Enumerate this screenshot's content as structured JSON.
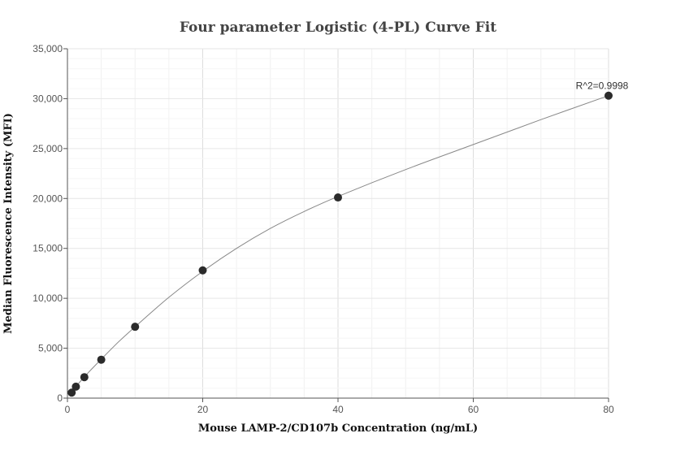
{
  "chart_data": {
    "type": "scatter",
    "title": "Four parameter Logistic (4-PL) Curve Fit",
    "xlabel": "Mouse LAMP-2/CD107b Concentration (ng/mL)",
    "ylabel": "Median Fluorescence Intensity (MFI)",
    "xlim": [
      0,
      80
    ],
    "ylim": [
      0,
      35000
    ],
    "xticks": [
      0,
      20,
      40,
      60,
      80
    ],
    "yticks": [
      0,
      5000,
      10000,
      15000,
      20000,
      25000,
      30000,
      35000
    ],
    "xtick_labels": [
      "0",
      "20",
      "40",
      "60",
      "80"
    ],
    "ytick_labels": [
      "0",
      "5,000",
      "10,000",
      "15,000",
      "20,000",
      "25,000",
      "30,000",
      "35,000"
    ],
    "grid": true,
    "colors": {
      "points": "#2b2b2b",
      "curve": "#888888",
      "grid": "#e6e6e6",
      "axis": "#555555"
    },
    "series": [
      {
        "kind": "points",
        "x": [
          0.625,
          1.25,
          2.5,
          5,
          10,
          20,
          40,
          80
        ],
        "y": [
          550,
          1150,
          2100,
          3850,
          7150,
          12800,
          20100,
          30300
        ]
      }
    ],
    "fit": {
      "model": "4PL",
      "x": [
        0.3,
        1,
        2,
        3,
        5,
        7.5,
        10,
        15,
        20,
        25,
        30,
        35,
        40,
        50,
        60,
        70,
        80
      ],
      "y": [
        280,
        950,
        1750,
        2500,
        3900,
        5600,
        7150,
        10100,
        12700,
        15000,
        17000,
        18700,
        20200,
        22900,
        25400,
        27900,
        30300
      ]
    },
    "annotation": "R^2=0.9998"
  }
}
